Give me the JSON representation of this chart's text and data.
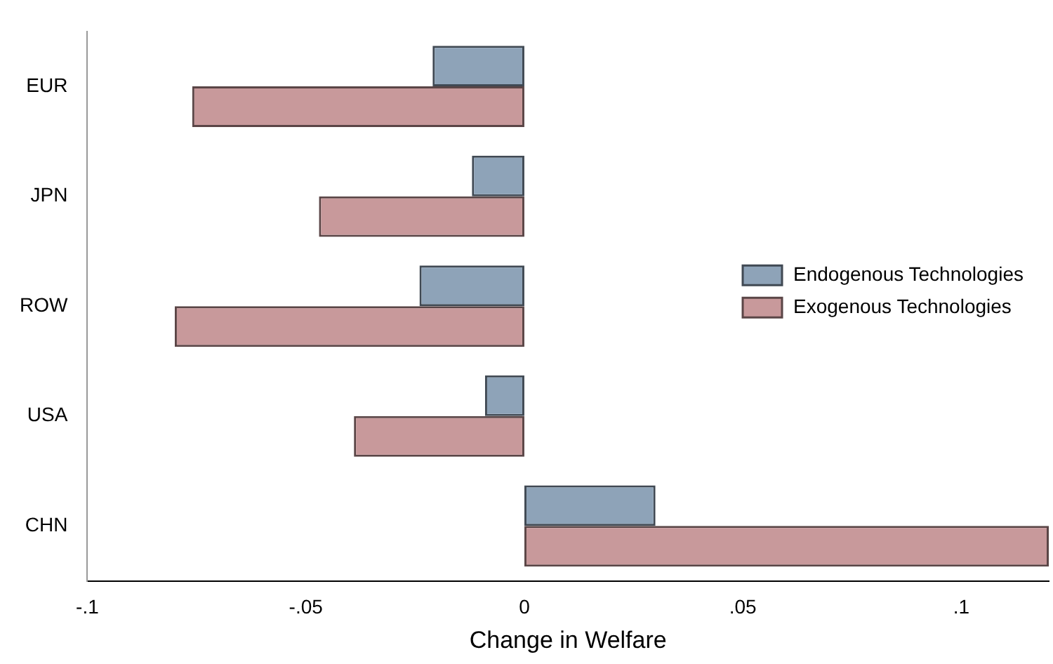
{
  "chart_data": {
    "type": "bar",
    "orientation": "horizontal",
    "xlabel": "Change in Welfare",
    "categories": [
      "EUR",
      "JPN",
      "ROW",
      "USA",
      "CHN"
    ],
    "series": [
      {
        "name": "Endogenous Technologies",
        "color": "#8ea3b8",
        "values": [
          -0.021,
          -0.012,
          -0.024,
          -0.009,
          0.03
        ]
      },
      {
        "name": "Exogenous Technologies",
        "color": "#c8999b",
        "values": [
          -0.076,
          -0.047,
          -0.08,
          -0.039,
          0.12
        ]
      }
    ],
    "xlim": [
      -0.1,
      0.12
    ],
    "xticks": [
      {
        "value": -0.1,
        "label": "-.1"
      },
      {
        "value": -0.05,
        "label": "-.05"
      },
      0,
      {
        "value": 0.05,
        "label": ".05"
      },
      {
        "value": 0.1,
        "label": ".1"
      }
    ],
    "grid": false,
    "legend": "right"
  }
}
